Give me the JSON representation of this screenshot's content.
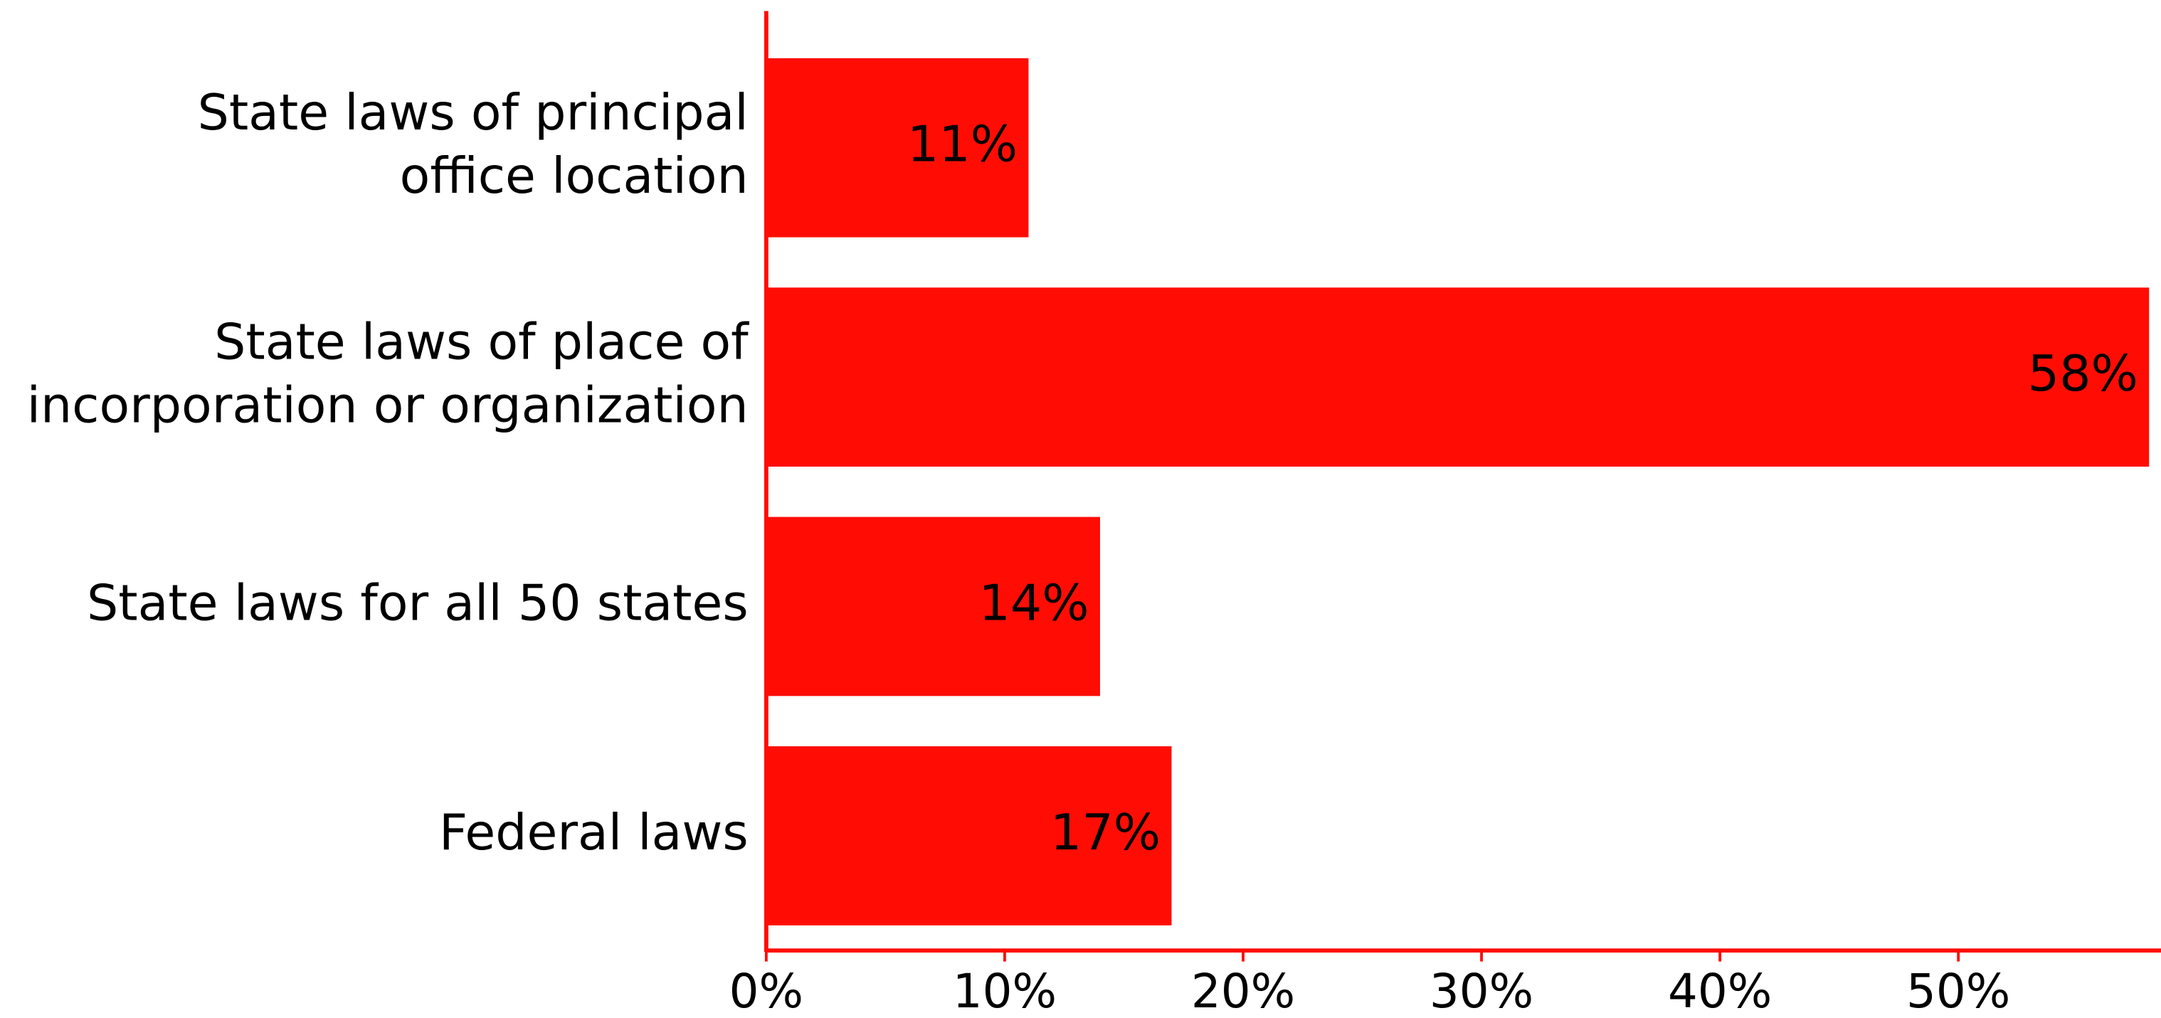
{
  "chart_data": {
    "type": "barh",
    "categories": [
      "State laws of principal\noffice location",
      "State laws of place of\nincorporation or organization",
      "State laws for all 50 states",
      "Federal laws"
    ],
    "values": [
      11,
      58,
      14,
      17
    ],
    "value_labels": [
      "11%",
      "58%",
      "14%",
      "17%"
    ],
    "color": "#ff0d05",
    "xlim": [
      0,
      58.5
    ],
    "xticks": [
      {
        "value": 0,
        "label": "0%"
      },
      {
        "value": 10,
        "label": "10%"
      },
      {
        "value": 20,
        "label": "20%"
      },
      {
        "value": 30,
        "label": "30%"
      },
      {
        "value": 40,
        "label": "40%"
      },
      {
        "value": 50,
        "label": "50%"
      }
    ],
    "grid": false
  }
}
